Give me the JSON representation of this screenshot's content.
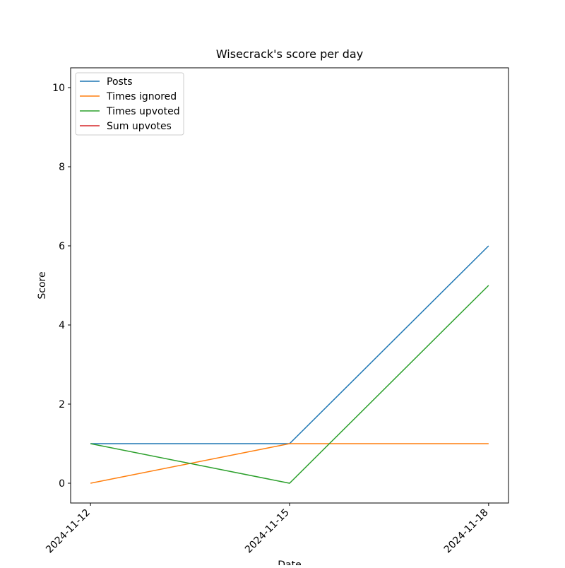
{
  "chart_data": {
    "type": "line",
    "title": "Wisecrack's score per day",
    "xlabel": "Date",
    "ylabel": "Score",
    "categories": [
      "2024-11-12",
      "2024-11-15",
      "2024-11-18"
    ],
    "series": [
      {
        "name": "Posts",
        "color": "#1f77b4",
        "values": [
          1,
          1,
          6
        ]
      },
      {
        "name": "Times ignored",
        "color": "#ff7f0e",
        "values": [
          0,
          1,
          1
        ]
      },
      {
        "name": "Times upvoted",
        "color": "#2ca02c",
        "values": [
          1,
          0,
          5
        ]
      },
      {
        "name": "Sum upvotes",
        "color": "#d62728",
        "values": [
          null,
          null,
          null
        ]
      }
    ],
    "ylim": [
      -0.5,
      10.5
    ],
    "yticks": [
      0,
      2,
      4,
      6,
      8,
      10
    ],
    "legend": "upper left"
  }
}
